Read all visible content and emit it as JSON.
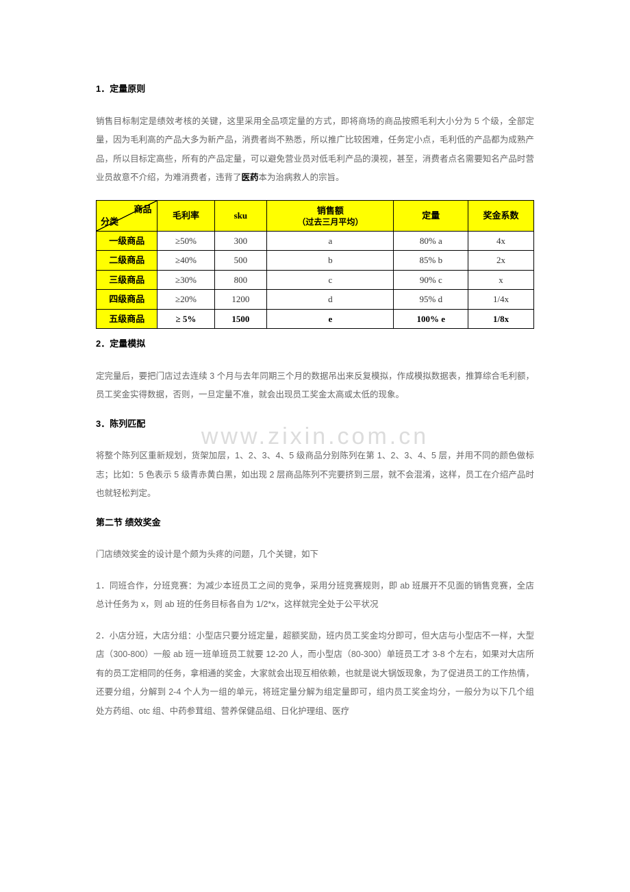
{
  "watermark_text": "www.zixin.com.cn",
  "section1": {
    "heading": "1．定量原则",
    "para_before": "销售目标制定是绩效考核的关键，这里采用全品项定量的方式，即将商场的商品按照毛利大小分为 5 个级，全部定量，因为毛利高的产品大多为新产品，消费者尚不熟悉，所以推广比较困难，任务定小点，毛利低的产品都为成熟产品，所以目标定高些，所有的产品定量，可以避免营业员对低毛利产品的漠视，甚至，消费者点名需要知名产品时营业员故意不介绍，为难消费者，违背了",
    "para_emph": "医药",
    "para_after": "本为治病救人的宗旨。"
  },
  "table": {
    "diag_top": "商品",
    "diag_bottom": "分类",
    "headers": [
      "毛利率",
      "sku",
      "销售额",
      "（过去三月平均）",
      "定量",
      "奖金系数"
    ],
    "rows": [
      {
        "label": "一级商品",
        "rate": "≥50%",
        "sku": "300",
        "sales": "a",
        "qty": "80% a",
        "coef": "4x",
        "bold": false
      },
      {
        "label": "二级商品",
        "rate": "≥40%",
        "sku": "500",
        "sales": "b",
        "qty": "85% b",
        "coef": "2x",
        "bold": false
      },
      {
        "label": "三级商品",
        "rate": "≥30%",
        "sku": "800",
        "sales": "c",
        "qty": "90% c",
        "coef": "x",
        "bold": false
      },
      {
        "label": "四级商品",
        "rate": "≥20%",
        "sku": "1200",
        "sales": "d",
        "qty": "95% d",
        "coef": "1/4x",
        "bold": false
      },
      {
        "label": "五级商品",
        "rate": "≥ 5%",
        "sku": "1500",
        "sales": "e",
        "qty": "100% e",
        "coef": "1/8x",
        "bold": true
      }
    ]
  },
  "section2": {
    "heading": "2．定量模拟",
    "para": "定完量后，要把门店过去连续 3 个月与去年同期三个月的数据吊出来反复模拟，作成模拟数据表，推算综合毛利额，员工奖金实得数据，否则，一旦定量不准，就会出现员工奖金太高或太低的现象。"
  },
  "section3": {
    "heading": "3．陈列匹配",
    "para": "将整个陈列区重新规划，货架加层，1、2、3、4、5 级商品分别陈列在第 1、2、3、4、5 层，并用不同的颜色做标志；比如：5 色表示 5 级青赤黄白黑，如出现 2 层商品陈列不完要挤到三层，就不会混淆，这样，员工在介绍产品时也就轻松判定。"
  },
  "section4": {
    "heading": "第二节  绩效奖金",
    "intro": "门店绩效奖金的设计是个颇为头疼的问题，几个关键，如下",
    "p1": "1．同班合作，分班竞赛：为减少本班员工之间的竞争，采用分班竞赛规则，即 ab 班展开不见面的销售竞赛，全店总计任务为 x，则 ab 班的任务目标各自为 1/2*x，这样就完全处于公平状况",
    "p2": "2．小店分班，大店分组：小型店只要分班定量，超额奖励，班内员工奖金均分即可，但大店与小型店不一样，大型店（300-800）一般 ab 班一班单班员工就要 12-20 人，而小型店（80-300）单班员工才 3-8 个左右，如果对大店所有的员工定相同的任务，拿相通的奖金，大家就会出现互相依赖，也就是说大锅饭现象，为了促进员工的工作热情，还要分组，分解到 2-4 个人为一组的单元，将班定量分解为组定量即可，组内员工奖金均分，一般分为以下几个组 处方药组、otc 组、中药参茸组、营养保健品组、日化护理组、医疗"
  },
  "colors": {
    "highlight": "#ffff00",
    "border": "#000000",
    "body_text": "#666666",
    "heading_text": "#000000",
    "watermark": "#dcdcdc",
    "background": "#ffffff"
  }
}
